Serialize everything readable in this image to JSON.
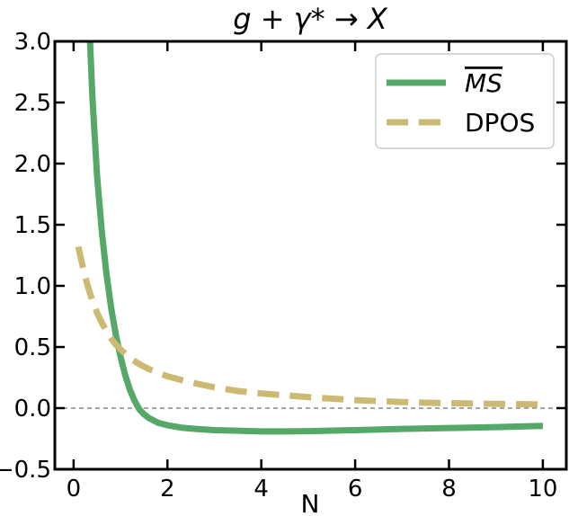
{
  "chart_data": {
    "type": "line",
    "title": "g + γ* → X",
    "xlabel": "N",
    "ylabel": "",
    "xlim": [
      -0.4,
      10.5
    ],
    "ylim": [
      -0.5,
      3.0
    ],
    "xticks": [
      0,
      2,
      4,
      6,
      8,
      10
    ],
    "xtick_labels": [
      "0",
      "2",
      "4",
      "6",
      "8",
      "10"
    ],
    "yticks": [
      -0.5,
      0.0,
      0.5,
      1.0,
      1.5,
      2.0,
      2.5,
      3.0
    ],
    "ytick_labels": [
      "−0.5",
      "0.0",
      "0.5",
      "1.0",
      "1.5",
      "2.0",
      "2.5",
      "3.0"
    ],
    "grid": false,
    "legend_position": "top-right",
    "reference_line": {
      "y": 0.0,
      "style": "dashed",
      "color": "#888888"
    },
    "series": [
      {
        "name": "MS",
        "overline": true,
        "color": "#55a868",
        "style": "solid",
        "x": [
          0.35,
          0.4,
          0.5,
          0.6,
          0.7,
          0.8,
          0.9,
          1.0,
          1.1,
          1.2,
          1.3,
          1.4,
          1.5,
          1.6,
          1.8,
          2.0,
          2.3,
          2.6,
          3.0,
          3.5,
          4.0,
          4.5,
          5.0,
          6.0,
          7.0,
          8.0,
          9.0,
          10.0
        ],
        "y": [
          3.0,
          2.55,
          1.9,
          1.45,
          1.1,
          0.82,
          0.6,
          0.42,
          0.27,
          0.15,
          0.06,
          -0.01,
          -0.05,
          -0.08,
          -0.12,
          -0.14,
          -0.16,
          -0.17,
          -0.18,
          -0.185,
          -0.19,
          -0.19,
          -0.188,
          -0.18,
          -0.17,
          -0.163,
          -0.155,
          -0.145
        ]
      },
      {
        "name": "DPOS",
        "overline": false,
        "color": "#ccb974",
        "style": "dashed",
        "x": [
          0.1,
          0.2,
          0.3,
          0.4,
          0.5,
          0.6,
          0.7,
          0.8,
          0.9,
          1.0,
          1.2,
          1.4,
          1.6,
          1.8,
          2.0,
          2.5,
          3.0,
          3.5,
          4.0,
          5.0,
          6.0,
          7.0,
          8.0,
          9.0,
          10.0
        ],
        "y": [
          1.32,
          1.15,
          1.0,
          0.88,
          0.78,
          0.7,
          0.63,
          0.57,
          0.52,
          0.48,
          0.41,
          0.36,
          0.32,
          0.29,
          0.26,
          0.21,
          0.17,
          0.14,
          0.12,
          0.09,
          0.065,
          0.05,
          0.04,
          0.035,
          0.03
        ]
      }
    ]
  }
}
